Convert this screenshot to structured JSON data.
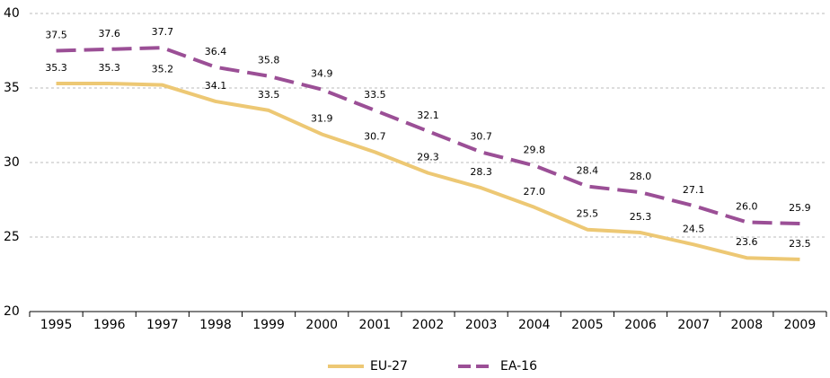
{
  "chart_data": {
    "type": "line",
    "categories": [
      "1995",
      "1996",
      "1997",
      "1998",
      "1999",
      "2000",
      "2001",
      "2002",
      "2003",
      "2004",
      "2005",
      "2006",
      "2007",
      "2008",
      "2009"
    ],
    "series": [
      {
        "name": "EU-27",
        "color": "#edc874",
        "dash": false,
        "values": [
          35.3,
          35.3,
          35.2,
          34.1,
          33.5,
          31.9,
          30.7,
          29.3,
          28.3,
          27.0,
          25.5,
          25.3,
          24.5,
          23.6,
          23.5
        ],
        "value_labels": [
          "35.3",
          "35.3",
          "35.2",
          "34.1",
          "33.5",
          "31.9",
          "30.7",
          "29.3",
          "28.3",
          "27.0",
          "25.5",
          "25.3",
          "24.5",
          "23.6",
          "23.5"
        ]
      },
      {
        "name": "EA-16",
        "color": "#9b4f96",
        "dash": true,
        "values": [
          37.5,
          37.6,
          37.7,
          36.4,
          35.8,
          34.9,
          33.5,
          32.1,
          30.7,
          29.8,
          28.4,
          28.0,
          27.1,
          26.0,
          25.9
        ],
        "value_labels": [
          "37.5",
          "37.6",
          "37.7",
          "36.4",
          "35.8",
          "34.9",
          "33.5",
          "32.1",
          "30.7",
          "29.8",
          "28.4",
          "28.0",
          "27.1",
          "26.0",
          "25.9"
        ]
      }
    ],
    "ylim": [
      20,
      40
    ],
    "yticks": [
      20,
      25,
      30,
      35,
      40
    ],
    "grid": true,
    "legend": "bottom"
  }
}
